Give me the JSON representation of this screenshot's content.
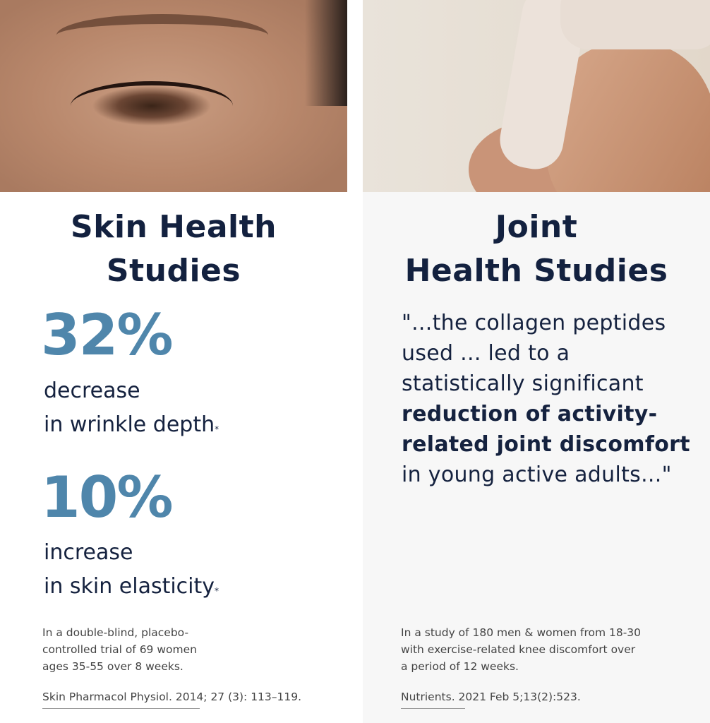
{
  "skin": {
    "title_line1": "Skin Health",
    "title_line2": "Studies",
    "stat1": "32%",
    "stat1_line1": "decrease",
    "stat1_line2": "in wrinkle depth",
    "stat2": "10%",
    "stat2_line1": "increase",
    "stat2_line2": "in skin elasticity",
    "asterisk": "*",
    "study": [
      "In a double-blind, placebo-",
      "controlled trial of 69 women",
      "ages 35-55 over 8 weeks."
    ],
    "citation": "Skin Pharmacol Physiol. 2014; 27 (3): 113–119."
  },
  "joint": {
    "title_line1": "Joint",
    "title_line2": "Health Studies",
    "quote_part1": "\"...the collagen peptides used ... led to a statistically significant ",
    "quote_bold": "reduction of activity-related joint discomfort",
    "quote_part2": " in young active adults...\"",
    "study": [
      "In a study of 180 men & women from 18-30",
      "with exercise-related knee discomfort over",
      "a period of 12 weeks."
    ],
    "citation": "Nutrients. 2021 Feb 5;13(2):523."
  },
  "colors": {
    "heading": "#13213f",
    "stat": "#4f86ab",
    "right_panel_bg": "#f7f7f7"
  }
}
